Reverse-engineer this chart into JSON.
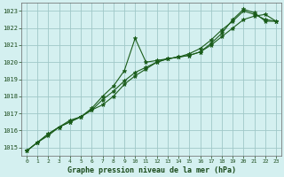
{
  "background_color": "#d4f0f0",
  "plot_bg_color": "#d4f0f0",
  "grid_color": "#a0c8c8",
  "line_color": "#1a5c1a",
  "marker_color": "#1a5c1a",
  "xlabel": "Graphe pression niveau de la mer (hPa)",
  "ylim": [
    1014.5,
    1023.5
  ],
  "xlim": [
    -0.5,
    23.5
  ],
  "yticks": [
    1015,
    1016,
    1017,
    1018,
    1019,
    1020,
    1021,
    1022,
    1023
  ],
  "xticks": [
    0,
    1,
    2,
    3,
    4,
    5,
    6,
    7,
    8,
    9,
    10,
    11,
    12,
    13,
    14,
    15,
    16,
    17,
    18,
    19,
    20,
    21,
    22,
    23
  ],
  "series1": [
    1014.8,
    1015.3,
    1015.8,
    1016.2,
    1016.6,
    1016.8,
    1017.3,
    1018.0,
    1018.6,
    1019.5,
    1021.4,
    1020.0,
    1020.1,
    1020.2,
    1020.3,
    1020.4,
    1020.6,
    1021.1,
    1021.7,
    1022.5,
    1023.1,
    1022.9,
    1022.4,
    1022.4
  ],
  "series2": [
    1014.8,
    1015.3,
    1015.8,
    1016.2,
    1016.5,
    1016.8,
    1017.2,
    1017.5,
    1018.0,
    1018.7,
    1019.2,
    1019.6,
    1020.0,
    1020.2,
    1020.3,
    1020.5,
    1020.8,
    1021.3,
    1021.9,
    1022.4,
    1023.0,
    1022.8,
    1022.5,
    1022.4
  ],
  "series3": [
    1014.8,
    1015.3,
    1015.7,
    1016.2,
    1016.5,
    1016.8,
    1017.2,
    1017.8,
    1018.3,
    1018.9,
    1019.4,
    1019.7,
    1020.0,
    1020.2,
    1020.3,
    1020.4,
    1020.6,
    1021.0,
    1021.5,
    1022.0,
    1022.5,
    1022.7,
    1022.8,
    1022.4
  ]
}
